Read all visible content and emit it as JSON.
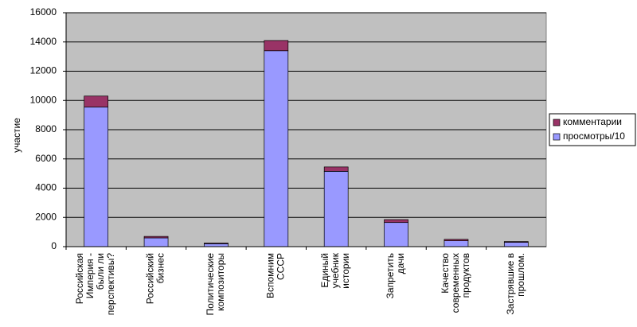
{
  "chart_data": {
    "type": "bar",
    "stacked": true,
    "y_label": "участие",
    "categories": [
      "Российская Империя - были ли перспективы?",
      "Российский бизнес",
      "Политические композиторы",
      "Вспомним СССР",
      "Единый учебник истории",
      "Запретить дачи",
      "Качество современных продуктов",
      "Застрявшие в прошлом."
    ],
    "series": [
      {
        "name": "просмотры/10",
        "color": "#9999ff",
        "values": [
          9550,
          600,
          200,
          13400,
          5150,
          1650,
          400,
          300
        ]
      },
      {
        "name": "комментарии",
        "color": "#993366",
        "values": [
          750,
          100,
          50,
          700,
          300,
          200,
          100,
          50
        ]
      }
    ],
    "ylim": [
      0,
      16000
    ],
    "yticks": [
      0,
      2000,
      4000,
      6000,
      8000,
      10000,
      12000,
      14000,
      16000
    ],
    "grid": true,
    "legend": "right"
  }
}
